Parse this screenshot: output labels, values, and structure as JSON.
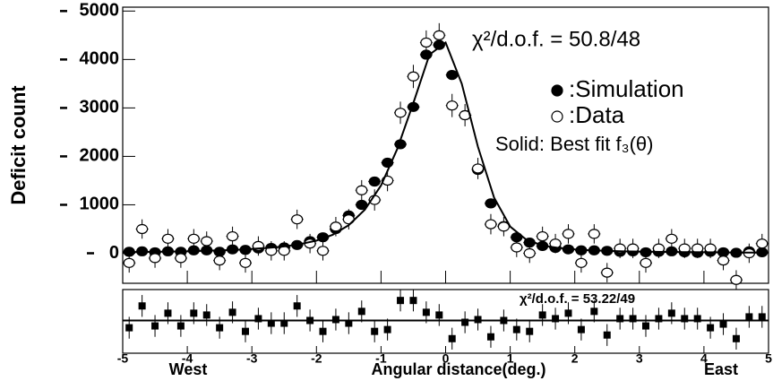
{
  "chart_data": [
    {
      "type": "scatter",
      "ylabel": "Deficit count",
      "xlim": [
        -5,
        5
      ],
      "ylim": [
        -620,
        5080
      ],
      "yticks": [
        0,
        1000,
        2000,
        3000,
        4000,
        5000
      ],
      "x": [
        -4.9,
        -4.7,
        -4.5,
        -4.3,
        -4.1,
        -3.9,
        -3.7,
        -3.5,
        -3.3,
        -3.1,
        -2.9,
        -2.7,
        -2.5,
        -2.3,
        -2.1,
        -1.9,
        -1.7,
        -1.5,
        -1.3,
        -1.1,
        -0.9,
        -0.7,
        -0.5,
        -0.3,
        -0.1,
        0.1,
        0.3,
        0.5,
        0.7,
        0.9,
        1.1,
        1.3,
        1.5,
        1.7,
        1.9,
        2.1,
        2.3,
        2.5,
        2.7,
        2.9,
        3.1,
        3.3,
        3.5,
        3.7,
        3.9,
        4.1,
        4.3,
        4.5,
        4.7,
        4.9
      ],
      "series": [
        {
          "name": ":Simulation",
          "marker": "filled",
          "color": "#000000",
          "values": [
            30,
            40,
            20,
            40,
            30,
            60,
            60,
            30,
            80,
            70,
            100,
            110,
            120,
            170,
            250,
            330,
            500,
            780,
            1000,
            1480,
            1870,
            2250,
            3020,
            4100,
            4300,
            3680,
            2850,
            1720,
            1030,
            560,
            330,
            220,
            150,
            110,
            80,
            60,
            60,
            50,
            30,
            40,
            20,
            30,
            40,
            20,
            10,
            30,
            20,
            10,
            40,
            20
          ],
          "errors": [
            40,
            40,
            40,
            40,
            40,
            40,
            40,
            40,
            40,
            40,
            40,
            40,
            40,
            40,
            40,
            50,
            50,
            50,
            60,
            60,
            60,
            70,
            80,
            90,
            90,
            90,
            80,
            70,
            60,
            50,
            40,
            40,
            40,
            40,
            40,
            40,
            40,
            40,
            40,
            40,
            40,
            40,
            40,
            40,
            40,
            40,
            40,
            40,
            40,
            40
          ]
        },
        {
          "name": ":Data",
          "marker": "open",
          "color": "#000000",
          "values": [
            -200,
            500,
            -100,
            300,
            -100,
            300,
            250,
            -150,
            350,
            -200,
            150,
            50,
            50,
            700,
            200,
            50,
            550,
            700,
            1300,
            1100,
            1500,
            2900,
            3650,
            4350,
            4500,
            3050,
            2850,
            1750,
            600,
            550,
            120,
            0,
            350,
            200,
            400,
            -200,
            400,
            -400,
            100,
            100,
            -200,
            100,
            300,
            100,
            100,
            100,
            -150,
            -550,
            0,
            200
          ],
          "errors": [
            200,
            200,
            200,
            200,
            200,
            200,
            200,
            200,
            200,
            200,
            200,
            200,
            200,
            200,
            200,
            200,
            200,
            210,
            210,
            220,
            220,
            230,
            240,
            250,
            250,
            240,
            230,
            220,
            210,
            200,
            200,
            200,
            200,
            200,
            200,
            200,
            200,
            200,
            200,
            200,
            200,
            200,
            200,
            200,
            200,
            200,
            200,
            200,
            200,
            200
          ]
        },
        {
          "name": "Solid: Best fit f₃(θ)",
          "marker": "line",
          "color": "#000000",
          "x": [
            -5,
            -4.75,
            -4.5,
            -4.25,
            -4,
            -3.75,
            -3.5,
            -3.25,
            -3,
            -2.75,
            -2.5,
            -2.25,
            -2,
            -1.75,
            -1.5,
            -1.25,
            -1,
            -0.75,
            -0.5,
            -0.25,
            0,
            0.25,
            0.5,
            0.75,
            1,
            1.25,
            1.5,
            1.75,
            2,
            2.25,
            2.5,
            2.75,
            3,
            3.25,
            3.5,
            3.75,
            4,
            4.25,
            4.5,
            4.75,
            5
          ],
          "values": [
            20,
            25,
            30,
            35,
            40,
            50,
            60,
            70,
            90,
            110,
            140,
            190,
            260,
            380,
            580,
            900,
            1400,
            2150,
            3100,
            4100,
            4350,
            3500,
            2200,
            1150,
            550,
            280,
            160,
            110,
            80,
            60,
            50,
            40,
            35,
            30,
            25,
            22,
            20,
            18,
            15,
            14,
            12
          ]
        }
      ],
      "annotations": [
        "χ²/d.o.f. = 50.8/48"
      ]
    },
    {
      "type": "residual",
      "xlabel": "Angular distance(deg.)",
      "xlabel_left": "West",
      "xlabel_right": "East",
      "xlim": [
        -5,
        5
      ],
      "xticks": [
        -5,
        -4,
        -3,
        -2,
        -1,
        0,
        1,
        2,
        3,
        4,
        5
      ],
      "ylim": [
        -3.6,
        3.4
      ],
      "values": [
        -0.8,
        1.6,
        -0.6,
        0.8,
        -0.6,
        0.8,
        0.6,
        -0.8,
        0.9,
        -1.2,
        0.2,
        -0.3,
        -0.3,
        1.6,
        0.0,
        -1.2,
        0.1,
        -0.3,
        1.0,
        -1.2,
        -1.0,
        2.2,
        2.2,
        0.9,
        0.6,
        -2.0,
        -0.2,
        0.1,
        -1.8,
        0.0,
        -1.0,
        -1.2,
        0.6,
        0.2,
        0.8,
        -1.0,
        1.0,
        -1.6,
        0.2,
        0.2,
        -0.6,
        0.2,
        0.8,
        0.2,
        0.2,
        -0.8,
        -0.4,
        -2.0,
        0.4,
        0.4
      ],
      "errors": [
        1.2,
        1.2,
        1.2,
        1.2,
        1.2,
        1.2,
        1.2,
        1.2,
        1.2,
        1.2,
        1.2,
        1.2,
        1.2,
        1.2,
        1.2,
        1.2,
        1.2,
        1.2,
        1.2,
        1.2,
        1.2,
        1.2,
        1.2,
        1.2,
        1.2,
        1.2,
        1.2,
        1.2,
        1.2,
        1.2,
        1.2,
        1.2,
        1.2,
        1.2,
        1.2,
        1.2,
        1.2,
        1.2,
        1.2,
        1.2,
        1.2,
        1.2,
        1.2,
        1.2,
        1.2,
        1.2,
        1.2,
        1.2,
        1.2,
        1.2
      ],
      "annotations": [
        "χ²/d.o.f. = 53.22/49"
      ]
    }
  ]
}
